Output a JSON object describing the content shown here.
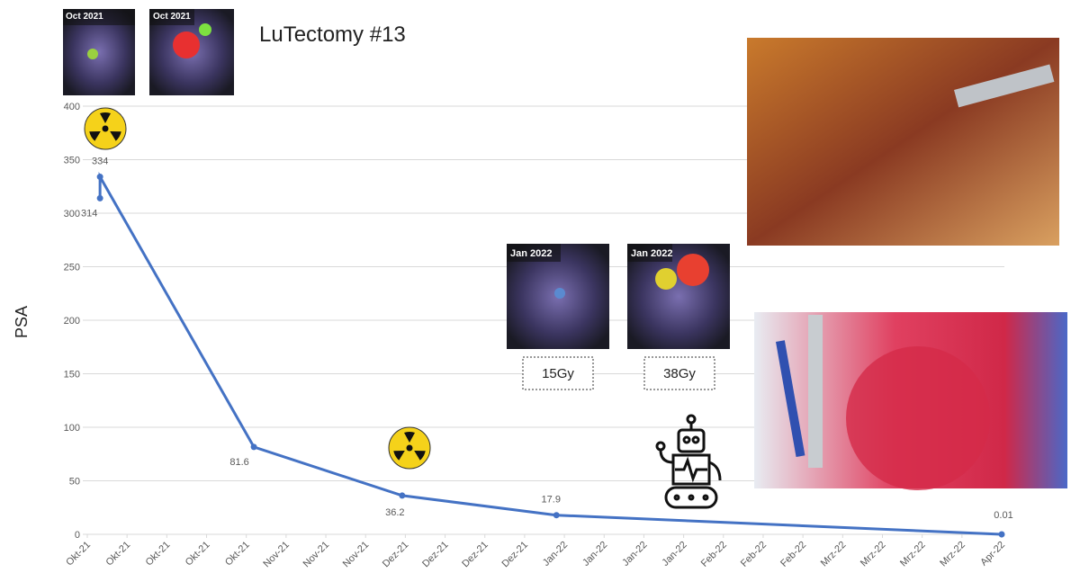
{
  "chart_data": {
    "type": "line",
    "title": "LuTectomy #13",
    "y_label": "PSA",
    "xlim": [
      0,
      23
    ],
    "xticks": [
      {
        "value": 0,
        "label": "Okt-21"
      },
      {
        "value": 1,
        "label": "Okt-21"
      },
      {
        "value": 2,
        "label": "Okt-21"
      },
      {
        "value": 3,
        "label": "Okt-21"
      },
      {
        "value": 4,
        "label": "Okt-21"
      },
      {
        "value": 5,
        "label": "Nov-21"
      },
      {
        "value": 6,
        "label": "Nov-21"
      },
      {
        "value": 7,
        "label": "Nov-21"
      },
      {
        "value": 8,
        "label": "Dez-21"
      },
      {
        "value": 9,
        "label": "Dez-21"
      },
      {
        "value": 10,
        "label": "Dez-21"
      },
      {
        "value": 11,
        "label": "Dez-21"
      },
      {
        "value": 12,
        "label": "Jan-22"
      },
      {
        "value": 13,
        "label": "Jan-22"
      },
      {
        "value": 14,
        "label": "Jan-22"
      },
      {
        "value": 15,
        "label": "Jan-22"
      },
      {
        "value": 16,
        "label": "Feb-22"
      },
      {
        "value": 17,
        "label": "Feb-22"
      },
      {
        "value": 18,
        "label": "Feb-22"
      },
      {
        "value": 19,
        "label": "Mrz-22"
      },
      {
        "value": 20,
        "label": "Mrz-22"
      },
      {
        "value": 21,
        "label": "Mrz-22"
      },
      {
        "value": 22,
        "label": "Mrz-22"
      },
      {
        "value": 23,
        "label": "Apr-22"
      }
    ],
    "ylim": [
      0,
      400
    ],
    "yticks": [
      0,
      50,
      100,
      150,
      200,
      250,
      300,
      350,
      400
    ],
    "grid": true,
    "series": [
      {
        "name": "PSA",
        "color": "#4472c4",
        "x": [
          0.32,
          0.32,
          4.19,
          7.92,
          11.8,
          23
        ],
        "values": [
          314,
          334,
          81.6,
          36.2,
          17.9,
          0.01
        ]
      }
    ],
    "annotations": [
      "Oct 2021",
      "Oct 2021",
      "Jan 2022",
      "Jan 2022",
      "15Gy",
      "38Gy"
    ]
  }
}
